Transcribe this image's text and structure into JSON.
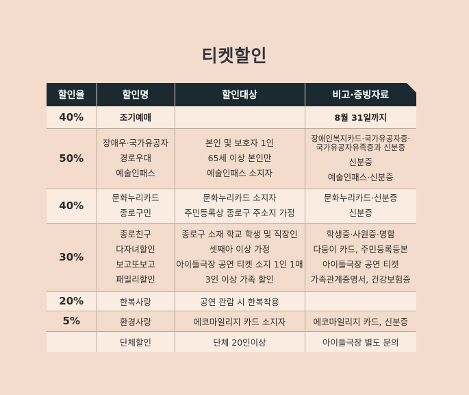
{
  "title": "티켓할인",
  "headers": [
    "할인율",
    "할인명",
    "할인대상",
    "비고·증빙자료"
  ],
  "rows": [
    {
      "rate": "40%",
      "names": [
        "조기예매"
      ],
      "targets": [
        ""
      ],
      "notes": [
        "8월 31일까지"
      ]
    },
    {
      "rate": "50%",
      "names": [
        "장애우·국가유공자",
        "경로우대",
        "예술인패스"
      ],
      "targets": [
        "본인 및 보호자 1인",
        "65세 이상 본인만",
        "예술인패스 소지자"
      ],
      "notes": [
        "장애인복지카드·국가유공자증·",
        "국가유공자유족증과 신분증",
        "신분증",
        "예술인패스·신분증"
      ]
    },
    {
      "rate": "40%",
      "names": [
        "문화누리카드",
        "종로구민"
      ],
      "targets": [
        "문화누리카드 소지자",
        "주민등록상 종로구 주소지 가정"
      ],
      "notes": [
        "문화누리카드·신분증",
        "신분증"
      ]
    },
    {
      "rate": "30%",
      "names": [
        "종로친구",
        "다자녀할인",
        "보고또보고",
        "패밀리할인"
      ],
      "targets": [
        "종로구 소재 학교 학생 및 직장인",
        "셋째아 이상 가정",
        "아이들극장 공연 티켓 소지 1인 1매",
        "3인 이상 가족 할인"
      ],
      "notes": [
        "학생증·사원증·명함",
        "다둥이 카드, 주민등록등본",
        "아이들극장 공연 티켓",
        "가족관계증명서, 건강보험증"
      ]
    },
    {
      "rate": "20%",
      "names": [
        "한복사랑"
      ],
      "targets": [
        "공연 관람 시 한복착용"
      ],
      "notes": [
        ""
      ]
    },
    {
      "rate": "5%",
      "names": [
        "환경사랑"
      ],
      "targets": [
        "에코마일리지 카드 소지자"
      ],
      "notes": [
        "에코마일리지 카드, 신분증"
      ]
    },
    {
      "rate": "",
      "names": [
        "단체할인"
      ],
      "targets": [
        "단체 20인이상"
      ],
      "notes": [
        "아이들극장 별도 문의"
      ]
    }
  ]
}
